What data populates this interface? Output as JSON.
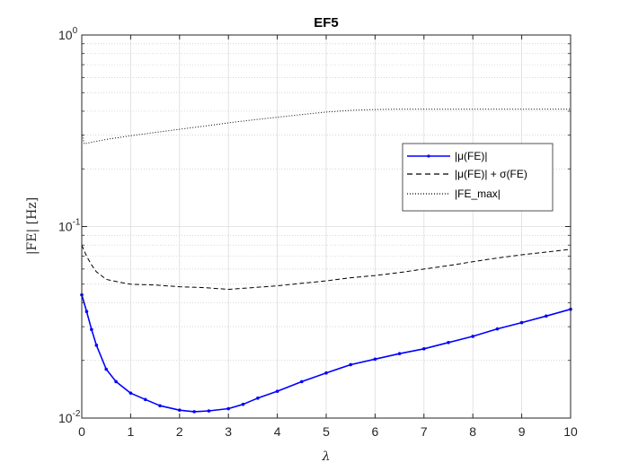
{
  "chart_data": {
    "type": "line",
    "title": "EF5",
    "xlabel": "λ",
    "ylabel": "|FE| [Hz]",
    "xlim": [
      0,
      10
    ],
    "ylim": [
      0.01,
      1
    ],
    "yscale": "log",
    "grid": true,
    "legend_position": "right",
    "x_ticks": [
      "0",
      "1",
      "2",
      "3",
      "4",
      "5",
      "6",
      "7",
      "8",
      "9",
      "10"
    ],
    "y_ticks": [
      {
        "base": "10",
        "exp": "-2"
      },
      {
        "base": "10",
        "exp": "-1"
      },
      {
        "base": "10",
        "exp": "0"
      }
    ],
    "series": [
      {
        "name": "|μ(FE)|",
        "color": "#0000ff",
        "style": "solid-with-markers",
        "x": [
          0,
          0.1,
          0.2,
          0.3,
          0.5,
          0.7,
          1.0,
          1.3,
          1.6,
          2.0,
          2.3,
          2.6,
          3.0,
          3.3,
          3.6,
          4.0,
          4.5,
          5.0,
          5.5,
          6.0,
          6.5,
          7.0,
          7.5,
          8.0,
          8.5,
          9.0,
          9.5,
          10.0
        ],
        "y": [
          0.044,
          0.036,
          0.029,
          0.024,
          0.018,
          0.0155,
          0.0135,
          0.0125,
          0.0116,
          0.011,
          0.0108,
          0.0109,
          0.0112,
          0.0118,
          0.0127,
          0.0138,
          0.0155,
          0.0172,
          0.019,
          0.0203,
          0.0217,
          0.023,
          0.0248,
          0.0267,
          0.0292,
          0.0315,
          0.0341,
          0.037
        ]
      },
      {
        "name": "|μ(FE)| + σ(FE)",
        "color": "#000000",
        "style": "dashed",
        "x": [
          0,
          0.1,
          0.2,
          0.3,
          0.5,
          0.8,
          1.0,
          1.5,
          2.0,
          2.5,
          3.0,
          3.5,
          4.0,
          4.5,
          5.0,
          5.5,
          6.0,
          6.5,
          7.0,
          7.5,
          8.0,
          8.5,
          9.0,
          9.5,
          10.0
        ],
        "y": [
          0.08,
          0.07,
          0.063,
          0.058,
          0.053,
          0.051,
          0.05,
          0.0495,
          0.0485,
          0.048,
          0.047,
          0.048,
          0.049,
          0.0505,
          0.052,
          0.054,
          0.0555,
          0.0575,
          0.06,
          0.0625,
          0.0655,
          0.0685,
          0.0712,
          0.0735,
          0.076
        ]
      },
      {
        "name": "|FE_max|",
        "color": "#000000",
        "style": "dotted",
        "x": [
          0,
          0.05,
          0.1,
          0.5,
          1.0,
          1.5,
          2.0,
          2.5,
          3.0,
          3.5,
          4.0,
          4.5,
          5.0,
          5.5,
          6.0,
          6.5,
          7.0,
          8.0,
          9.0,
          10.0
        ],
        "y": [
          0.31,
          0.27,
          0.272,
          0.285,
          0.298,
          0.31,
          0.322,
          0.334,
          0.348,
          0.36,
          0.372,
          0.384,
          0.396,
          0.404,
          0.408,
          0.41,
          0.41,
          0.41,
          0.41,
          0.41
        ]
      }
    ]
  }
}
